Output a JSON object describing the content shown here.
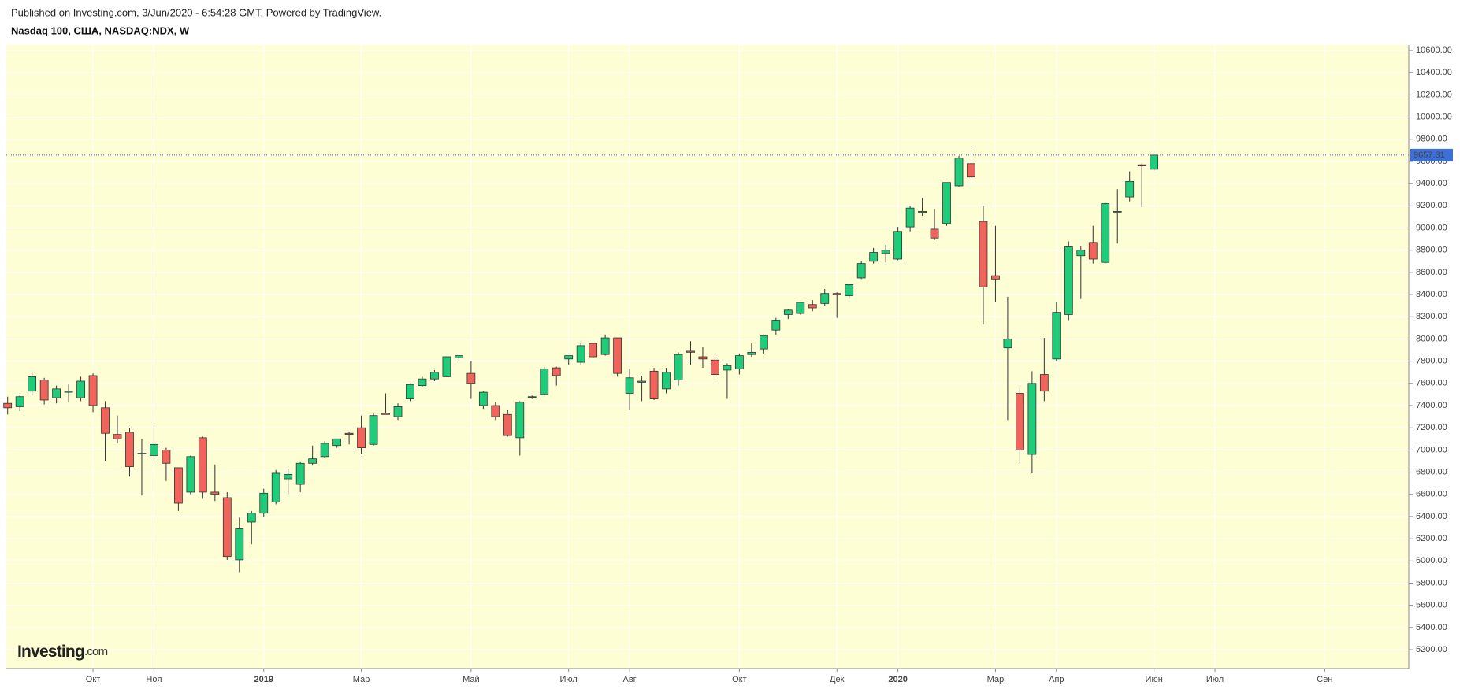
{
  "header": "Published on Investing.com, 3/Jun/2020 - 6:54:28 GMT, Powered by TradingView.",
  "chart_data": {
    "type": "candlestick",
    "title": "Nasdaq 100, США, NASDAQ:NDX, W",
    "watermark": {
      "main": "Investing",
      "suffix": ".com"
    },
    "up_color": "#1fcc79",
    "down_color": "#f0645c",
    "background": "#fefed5",
    "grid": true,
    "categories": [
      null,
      null,
      null,
      null,
      null,
      null,
      null,
      "Окт",
      null,
      null,
      null,
      null,
      "Ноя",
      null,
      null,
      null,
      null,
      null,
      null,
      null,
      null,
      "2019",
      null,
      null,
      null,
      null,
      null,
      null,
      null,
      "Мар",
      null,
      null,
      null,
      null,
      null,
      null,
      null,
      null,
      "Май",
      null,
      null,
      null,
      null,
      null,
      null,
      null,
      "Июл",
      null,
      null,
      null,
      null,
      "Авг",
      null,
      null,
      null,
      null,
      null,
      null,
      null,
      null,
      "Окт",
      null,
      null,
      null,
      null,
      null,
      null,
      null,
      "Дек",
      null,
      null,
      null,
      null,
      "2020",
      null,
      null,
      null,
      null,
      null,
      null,
      null,
      "Мар",
      null,
      null,
      null,
      null,
      "Апр",
      null,
      null,
      null,
      null,
      null,
      null,
      null,
      "Июн",
      null,
      null,
      null,
      null,
      "Июл",
      null,
      null,
      null,
      null,
      null,
      null,
      null,
      null,
      "Сен",
      null,
      null,
      null,
      null,
      null,
      null
    ],
    "open": [
      7420,
      7390,
      7530,
      7630,
      7470,
      7520,
      7470,
      7670,
      7380,
      7140,
      7160,
      6970,
      6950,
      7000,
      6840,
      6620,
      7110,
      6620,
      6570,
      6010,
      6350,
      6430,
      6530,
      6740,
      6690,
      6880,
      6940,
      7040,
      7150,
      7200,
      7050,
      7330,
      7300,
      7460,
      7580,
      7640,
      7660,
      7830,
      7690,
      7400,
      7400,
      7320,
      7110,
      7480,
      7500,
      7740,
      7820,
      7790,
      7960,
      7860,
      8010,
      7510,
      7610,
      7710,
      7550,
      7630,
      7890,
      7840,
      7810,
      7720,
      7730,
      7860,
      7910,
      8080,
      8220,
      8230,
      8310,
      8320,
      8410,
      8390,
      8550,
      8700,
      8770,
      8720,
      9010,
      9140,
      8990,
      9040,
      9380,
      9580,
      9060,
      8570,
      7920,
      7510,
      6960,
      7680,
      7820,
      8220,
      8750,
      8870,
      8690,
      9150,
      9280,
      9570,
      9530,
      null,
      null,
      null,
      null,
      null,
      null,
      null,
      null,
      null,
      null,
      null,
      null,
      null,
      null,
      null,
      null,
      null,
      null,
      null,
      null
    ],
    "high": [
      7480,
      7500,
      7700,
      7650,
      7580,
      7590,
      7660,
      7690,
      7440,
      7310,
      7200,
      7100,
      7220,
      7020,
      6840,
      6950,
      7120,
      6870,
      6620,
      6390,
      6450,
      6650,
      6820,
      6830,
      6890,
      7040,
      7080,
      7100,
      7160,
      7310,
      7330,
      7510,
      7420,
      7600,
      7660,
      7720,
      7840,
      7850,
      7800,
      7530,
      7430,
      7360,
      7440,
      7490,
      7750,
      7750,
      7850,
      7960,
      7970,
      8040,
      8010,
      7730,
      7670,
      7740,
      7740,
      7880,
      7980,
      7930,
      7840,
      7780,
      7870,
      7960,
      8040,
      8190,
      8270,
      8330,
      8350,
      8450,
      8420,
      8500,
      8700,
      8820,
      8850,
      9010,
      9200,
      9270,
      9170,
      9410,
      9650,
      9720,
      9200,
      9020,
      8380,
      7560,
      7710,
      8010,
      8330,
      8880,
      8840,
      9020,
      9230,
      9350,
      9510,
      9580,
      9670,
      null,
      null,
      null,
      null,
      null,
      null,
      null,
      null,
      null,
      null,
      null,
      null,
      null,
      null,
      null,
      null,
      null,
      null,
      null,
      null
    ],
    "low": [
      7320,
      7350,
      7500,
      7410,
      7420,
      7430,
      7440,
      7340,
      6900,
      7060,
      6760,
      6590,
      6900,
      6720,
      6450,
      6600,
      6560,
      6540,
      6010,
      5900,
      6150,
      6400,
      6510,
      6600,
      6620,
      6860,
      6930,
      7020,
      7050,
      6960,
      7040,
      7320,
      7270,
      7440,
      7570,
      7620,
      7660,
      7800,
      7460,
      7370,
      7270,
      7120,
      6950,
      7460,
      7490,
      7580,
      7770,
      7770,
      7830,
      7850,
      7660,
      7360,
      7440,
      7450,
      7510,
      7580,
      7770,
      7740,
      7630,
      7460,
      7680,
      7840,
      7870,
      8040,
      8180,
      8220,
      8250,
      8300,
      8190,
      8360,
      8540,
      8680,
      8690,
      8710,
      8970,
      9110,
      8890,
      9020,
      9370,
      9410,
      8130,
      8330,
      7270,
      6860,
      6790,
      7440,
      7800,
      8170,
      8360,
      8680,
      8680,
      8860,
      9240,
      9190,
      9520,
      null,
      null,
      null,
      null,
      null,
      null,
      null,
      null,
      null,
      null,
      null,
      null,
      null,
      null,
      null,
      null,
      null,
      null,
      null,
      null
    ],
    "close": [
      7380,
      7480,
      7660,
      7450,
      7550,
      7530,
      7620,
      7400,
      7150,
      7100,
      6850,
      6970,
      7050,
      6880,
      6520,
      6940,
      6620,
      6600,
      6040,
      6290,
      6430,
      6610,
      6790,
      6780,
      6880,
      6920,
      7060,
      7100,
      7140,
      7020,
      7310,
      7320,
      7390,
      7590,
      7640,
      7700,
      7840,
      7850,
      7600,
      7520,
      7300,
      7130,
      7430,
      7480,
      7730,
      7670,
      7850,
      7940,
      7840,
      8010,
      7690,
      7650,
      7620,
      7460,
      7700,
      7860,
      7880,
      7820,
      7680,
      7760,
      7850,
      7880,
      8030,
      8170,
      8260,
      8330,
      8280,
      8410,
      8400,
      8490,
      8680,
      8780,
      8800,
      8970,
      9180,
      9150,
      8910,
      9410,
      9630,
      9460,
      8470,
      8540,
      8000,
      7000,
      7600,
      7530,
      8240,
      8830,
      8800,
      8720,
      9220,
      9150,
      9420,
      9560,
      9657.31,
      null,
      null,
      null,
      null,
      null,
      null,
      null,
      null,
      null,
      null,
      null,
      null,
      null,
      null,
      null,
      null,
      null,
      null,
      null,
      null
    ],
    "ylim": [
      5030,
      10650
    ],
    "yticks": [
      {
        "value": 5200,
        "label": "5200.00"
      },
      {
        "value": 5400,
        "label": "5400.00"
      },
      {
        "value": 5600,
        "label": "5600.00"
      },
      {
        "value": 5800,
        "label": "5800.00"
      },
      {
        "value": 6000,
        "label": "6000.00"
      },
      {
        "value": 6200,
        "label": "6200.00"
      },
      {
        "value": 6400,
        "label": "6400.00"
      },
      {
        "value": 6600,
        "label": "6600.00"
      },
      {
        "value": 6800,
        "label": "6800.00"
      },
      {
        "value": 7000,
        "label": "7000.00"
      },
      {
        "value": 7200,
        "label": "7200.00"
      },
      {
        "value": 7400,
        "label": "7400.00"
      },
      {
        "value": 7600,
        "label": "7600.00"
      },
      {
        "value": 7800,
        "label": "7800.00"
      },
      {
        "value": 8000,
        "label": "8000.00"
      },
      {
        "value": 8200,
        "label": "8200.00"
      },
      {
        "value": 8400,
        "label": "8400.00"
      },
      {
        "value": 8600,
        "label": "8600.00"
      },
      {
        "value": 8800,
        "label": "8800.00"
      },
      {
        "value": 9000,
        "label": "9000.00"
      },
      {
        "value": 9200,
        "label": "9200.00"
      },
      {
        "value": 9400,
        "label": "9400.00"
      },
      {
        "value": 9600,
        "label": "9600.00"
      },
      {
        "value": 9800,
        "label": "9800.00"
      },
      {
        "value": 10000,
        "label": "10000.00"
      },
      {
        "value": 10200,
        "label": "10200.00"
      },
      {
        "value": 10400,
        "label": "10400.00"
      },
      {
        "value": 10600,
        "label": "10600.00"
      }
    ]
  }
}
